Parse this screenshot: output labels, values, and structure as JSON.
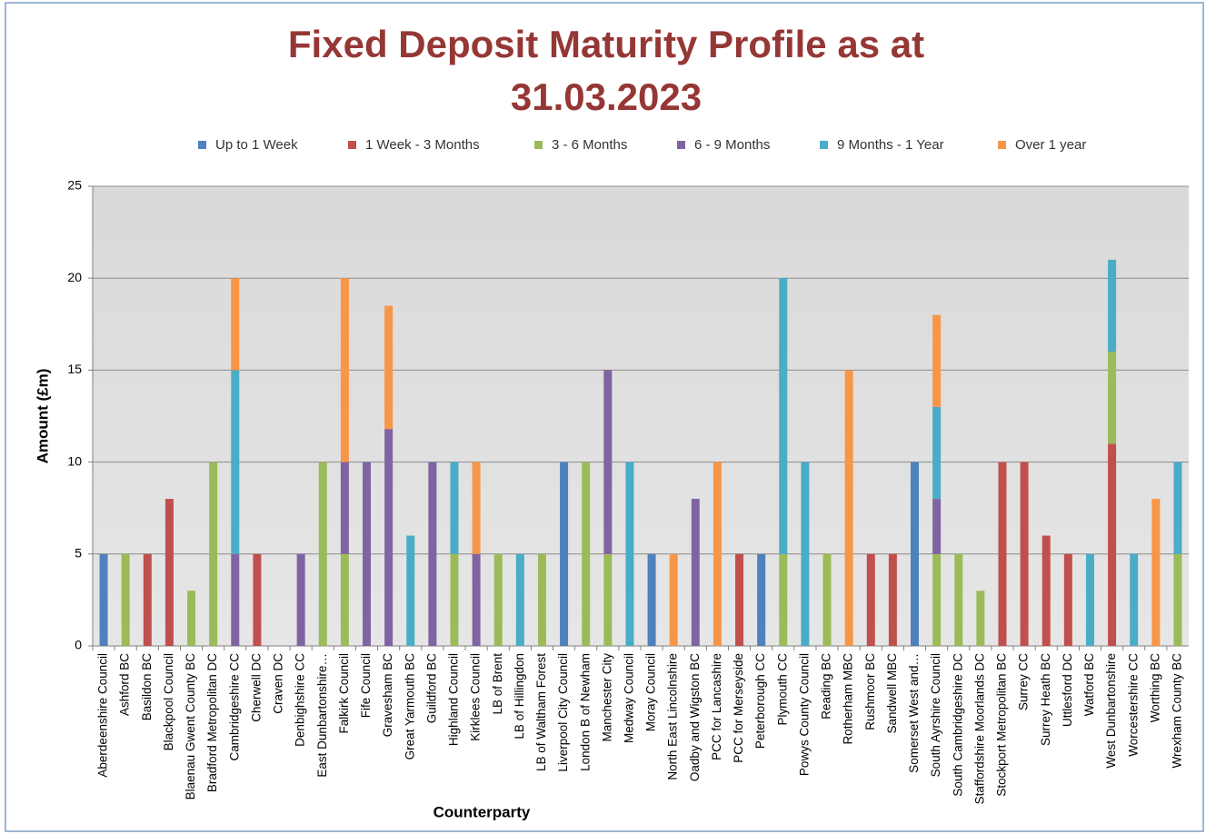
{
  "chart_data": {
    "type": "stacked_bar",
    "title": [
      "Fixed Deposit Maturity Profile as at",
      "31.03.2023"
    ],
    "xlabel": "Counterparty",
    "ylabel": "Amount (£m)",
    "categories": [
      "Aberdeenshire Council",
      "Ashford BC",
      "Basildon BC",
      "Blackpool Council",
      "Blaenau Gwent County BC",
      "Bradford Metropolitan DC",
      "Cambridgeshire CC",
      "Cherwell DC",
      "Craven DC",
      "Denbighshire CC",
      "East Dunbartonshire…",
      "Falkirk Council",
      "Fife Council",
      "Gravesham BC",
      "Great Yarmouth BC",
      "Guildford BC",
      "Highland Council",
      "Kirklees Council",
      "LB of Brent",
      "LB of Hillingdon",
      "LB of Waltham Forest",
      "Liverpool City Council",
      "London B of Newham",
      "Manchester City",
      "Medway Council",
      "Moray Council",
      "North East Lincolnshire",
      "Oadby and Wigston BC",
      "PCC for Lancashire",
      "PCC for Merseyside",
      "Peterborough CC",
      "Plymouth CC",
      "Powys County Council",
      "Reading BC",
      "Rotherham MBC",
      "Rushmoor BC",
      "Sandwell MBC",
      "Somerset West and…",
      "South Ayrshire Council",
      "South Cambridgeshire DC",
      "Staffordshire Moorlands DC",
      "Stockport Metropolitan BC",
      "Surrey CC",
      "Surrey Heath BC",
      "Uttlesford DC",
      "Watford BC",
      "West Dunbartonshire",
      "Worcestershire CC",
      "Worthing BC",
      "Wrexham County BC"
    ],
    "series": [
      {
        "name": "Up to 1 Week",
        "color": "#4f81bd",
        "values": [
          5,
          0,
          0,
          0,
          0,
          0,
          0,
          0,
          0,
          0,
          0,
          0,
          0,
          0,
          0,
          0,
          0,
          0,
          0,
          0,
          0,
          10,
          0,
          0,
          0,
          5,
          0,
          0,
          0,
          0,
          5,
          0,
          0,
          0,
          0,
          0,
          0,
          10,
          0,
          0,
          0,
          0,
          0,
          0,
          0,
          0,
          0,
          0,
          0,
          0
        ]
      },
      {
        "name": "1 Week - 3 Months",
        "color": "#c0504d",
        "values": [
          0,
          0,
          5,
          8,
          0,
          0,
          0,
          5,
          0,
          0,
          0,
          0,
          0,
          0,
          0,
          0,
          0,
          0,
          0,
          0,
          0,
          0,
          0,
          0,
          0,
          0,
          0,
          0,
          0,
          5,
          0,
          0,
          0,
          0,
          0,
          5,
          5,
          0,
          0,
          0,
          0,
          10,
          10,
          6,
          5,
          0,
          11,
          0,
          0,
          0
        ]
      },
      {
        "name": "3 - 6 Months",
        "color": "#9bbb59",
        "values": [
          0,
          5,
          0,
          0,
          3,
          10,
          0,
          0,
          0,
          0,
          10,
          5,
          0,
          0,
          0,
          0,
          5,
          0,
          5,
          0,
          5,
          0,
          10,
          5,
          0,
          0,
          0,
          0,
          0,
          0,
          0,
          5,
          0,
          5,
          0,
          0,
          0,
          0,
          5,
          5,
          3,
          0,
          0,
          0,
          0,
          0,
          5,
          0,
          0,
          5
        ]
      },
      {
        "name": "6 - 9 Months",
        "color": "#8064a2",
        "values": [
          0,
          0,
          0,
          0,
          0,
          0,
          5,
          0,
          0,
          5,
          0,
          5,
          10,
          11.8,
          0,
          10,
          0,
          5,
          0,
          0,
          0,
          0,
          0,
          10,
          0,
          0,
          0,
          8,
          0,
          0,
          0,
          0,
          0,
          0,
          0,
          0,
          0,
          0,
          3,
          0,
          0,
          0,
          0,
          0,
          0,
          0,
          0,
          0,
          0,
          0
        ]
      },
      {
        "name": "9 Months - 1 Year",
        "color": "#4bacc6",
        "values": [
          0,
          0,
          0,
          0,
          0,
          0,
          10,
          0,
          0,
          0,
          0,
          0,
          0,
          0,
          6,
          0,
          5,
          0,
          0,
          5,
          0,
          0,
          0,
          0,
          10,
          0,
          0,
          0,
          0,
          0,
          0,
          15,
          10,
          0,
          0,
          0,
          0,
          0,
          5,
          0,
          0,
          0,
          0,
          0,
          0,
          5,
          5,
          5,
          0,
          5
        ]
      },
      {
        "name": "Over 1 year",
        "color": "#f79646",
        "values": [
          0,
          0,
          0,
          0,
          0,
          0,
          5,
          0,
          0,
          0,
          0,
          10,
          0,
          6.7,
          0,
          0,
          0,
          5,
          0,
          0,
          0,
          0,
          0,
          0,
          0,
          0,
          5,
          0,
          10,
          0,
          0,
          0,
          0,
          0,
          15,
          0,
          0,
          0,
          5,
          0,
          0,
          0,
          0,
          0,
          0,
          0,
          0,
          0,
          8,
          0
        ]
      }
    ],
    "ylim": [
      0,
      25
    ],
    "yticks": [
      0,
      5,
      10,
      15,
      20,
      25
    ],
    "grid": true,
    "legend": "top"
  }
}
